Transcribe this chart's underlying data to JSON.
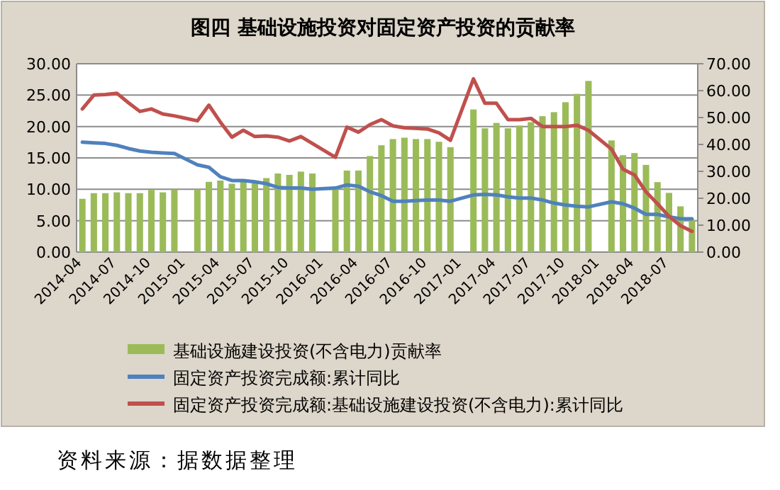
{
  "chart_data": {
    "type": "bar",
    "title": "图四    基础设施投资对固定资产投资的贡献率",
    "categories": [
      "2014-04",
      null,
      null,
      "2014-07",
      null,
      null,
      "2014-10",
      null,
      null,
      "2015-01",
      null,
      null,
      "2015-04",
      null,
      null,
      "2015-07",
      null,
      null,
      "2015-10",
      null,
      null,
      "2016-01",
      null,
      null,
      "2016-04",
      null,
      null,
      "2016-07",
      null,
      null,
      "2016-10",
      null,
      null,
      "2017-01",
      null,
      null,
      "2017-04",
      null,
      null,
      "2017-07",
      null,
      null,
      "2017-10",
      null,
      null,
      "2018-01",
      null,
      null,
      "2018-04",
      null,
      null,
      "2018-07",
      null,
      null
    ],
    "series": [
      {
        "name": "基础设施建设投资(不含电力)贡献率",
        "axis": "y2",
        "color": "#9bbb59",
        "values": [
          19.8,
          21.9,
          21.9,
          22.2,
          21.9,
          21.9,
          23.1,
          22.2,
          23.3,
          null,
          23.3,
          26.1,
          26.6,
          25.4,
          27.1,
          26.1,
          27.5,
          29.2,
          28.7,
          29.9,
          29.2,
          null,
          23.5,
          30.3,
          30.3,
          35.7,
          39.7,
          42,
          42.5,
          42,
          42,
          41,
          39,
          null,
          53,
          46,
          48,
          46,
          47,
          48.3,
          50.5,
          52,
          55.7,
          58.8,
          63.6,
          null,
          41.5,
          36,
          36.8,
          32.4,
          26,
          22,
          17,
          12
        ]
      },
      {
        "name": "固定资产投资完成额:累计同比",
        "type": "line",
        "axis": "y",
        "color": "#4f81bd",
        "values": [
          17.5,
          17.4,
          17.3,
          17.0,
          16.5,
          16.1,
          15.9,
          15.8,
          15.7,
          null,
          13.9,
          13.5,
          12.0,
          11.4,
          11.4,
          11.2,
          10.9,
          10.3,
          10.2,
          10.2,
          10.0,
          null,
          10.2,
          10.7,
          10.5,
          9.6,
          9.0,
          8.1,
          8.1,
          8.2,
          8.3,
          8.3,
          8.1,
          null,
          9.1,
          9.2,
          9.1,
          8.8,
          8.6,
          8.6,
          8.3,
          7.8,
          7.5,
          7.3,
          7.2,
          null,
          8.0,
          7.7,
          7.0,
          6.0,
          6.0,
          5.6,
          5.3,
          5.3
        ]
      },
      {
        "name": "固定资产投资完成额:基础设施建设投资(不含电力):累计同比",
        "type": "line",
        "axis": "y",
        "color": "#c0504d",
        "values": [
          22.8,
          25.0,
          25.1,
          25.3,
          23.8,
          22.4,
          22.8,
          22.0,
          21.7,
          null,
          20.9,
          23.4,
          20.7,
          18.3,
          19.4,
          18.4,
          18.5,
          18.3,
          17.7,
          18.4,
          17.3,
          null,
          15.1,
          19.9,
          19.1,
          20.3,
          21.1,
          20.1,
          19.8,
          19.7,
          19.6,
          19.0,
          17.8,
          null,
          27.6,
          23.7,
          23.7,
          21.1,
          21.1,
          21.3,
          20.0,
          20.0,
          20.0,
          20.2,
          19.4,
          null,
          16.4,
          13.2,
          12.3,
          9.6,
          7.7,
          5.7,
          4.2,
          3.3
        ]
      }
    ],
    "ylim": [
      0,
      30
    ],
    "yticks": [
      {
        "value": 0,
        "label": "0.00"
      },
      {
        "value": 5,
        "label": "5.00"
      },
      {
        "value": 10,
        "label": "10.00"
      },
      {
        "value": 15,
        "label": "15.00"
      },
      {
        "value": 20,
        "label": "20.00"
      },
      {
        "value": 25,
        "label": "25.00"
      },
      {
        "value": 30,
        "label": "30.00"
      }
    ],
    "y2lim": [
      0,
      70
    ],
    "y2ticks": [
      {
        "value": 0,
        "label": "0.00"
      },
      {
        "value": 10,
        "label": "10.00"
      },
      {
        "value": 20,
        "label": "20.00"
      },
      {
        "value": 30,
        "label": "30.00"
      },
      {
        "value": 40,
        "label": "40.00"
      },
      {
        "value": 50,
        "label": "50.00"
      },
      {
        "value": 60,
        "label": "60.00"
      },
      {
        "value": 70,
        "label": "70.00"
      }
    ],
    "grid": "y",
    "legend": "bottom",
    "annotations": [
      "资料来源：据数据整理"
    ]
  }
}
